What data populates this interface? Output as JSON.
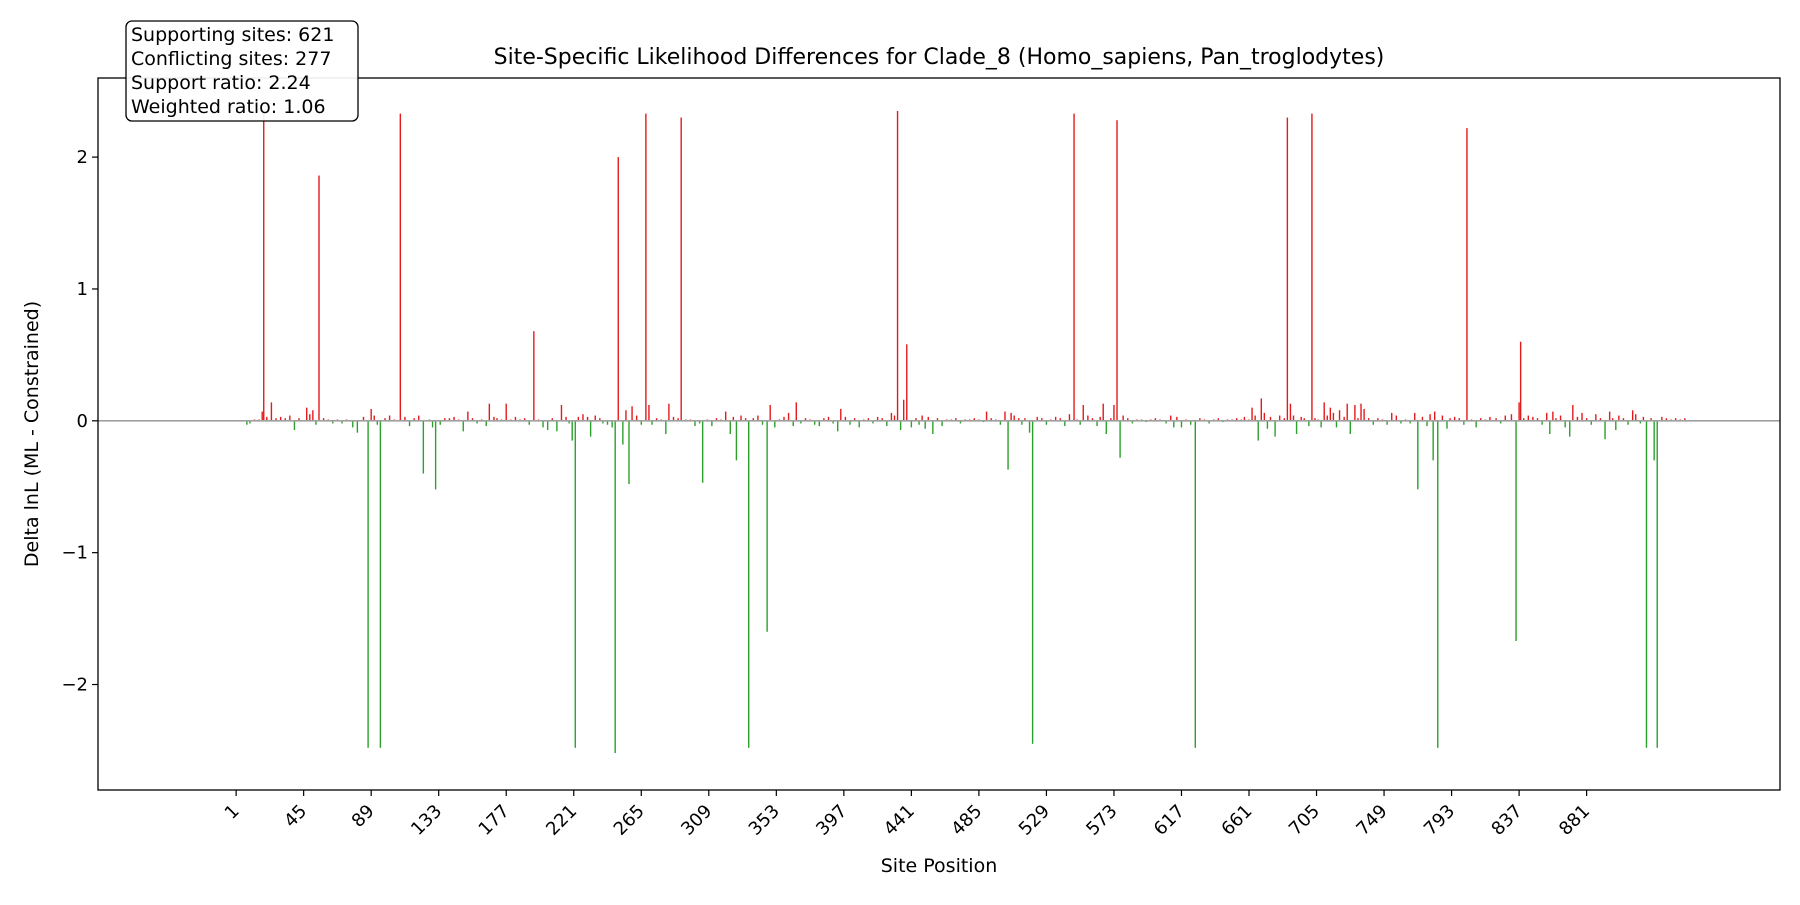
{
  "chart_data": {
    "type": "bar",
    "title": "Site-Specific Likelihood Differences for Clade_8 (Homo_sapiens, Pan_troglodytes)",
    "xlabel": "Site Position",
    "ylabel": "Delta lnL (ML - Constrained)",
    "xlim": [
      -89,
      1007
    ],
    "ylim": [
      -2.8,
      2.6
    ],
    "yticks": [
      -2,
      -1,
      0,
      1,
      2
    ],
    "xticks": [
      1,
      45,
      89,
      133,
      177,
      221,
      265,
      309,
      353,
      397,
      441,
      485,
      529,
      573,
      617,
      661,
      705,
      749,
      793,
      837,
      881
    ],
    "grid": false,
    "zero_line": true,
    "colors": {
      "supporting": "#e41a1c",
      "conflicting": "#2ca02c",
      "zero_line": "#a0a0a0"
    },
    "stats": {
      "supporting": "Supporting sites: 621",
      "conflicting": "Conflicting sites: 277",
      "support_ratio": "Support ratio: 2.24",
      "weighted_ratio": "Weighted ratio: 1.06"
    },
    "values": [
      [
        8,
        -0.03
      ],
      [
        10,
        -0.02
      ],
      [
        13,
        0.01
      ],
      [
        16,
        0.01
      ],
      [
        18,
        0.07
      ],
      [
        19,
        2.35
      ],
      [
        21,
        0.03
      ],
      [
        24,
        0.14
      ],
      [
        27,
        0.02
      ],
      [
        30,
        0.03
      ],
      [
        33,
        0.02
      ],
      [
        36,
        0.04
      ],
      [
        39,
        -0.07
      ],
      [
        42,
        0.02
      ],
      [
        47,
        0.1
      ],
      [
        49,
        0.05
      ],
      [
        51,
        0.08
      ],
      [
        53,
        -0.03
      ],
      [
        55,
        1.86
      ],
      [
        58,
        0.02
      ],
      [
        61,
        0.01
      ],
      [
        64,
        -0.02
      ],
      [
        67,
        0.01
      ],
      [
        70,
        -0.02
      ],
      [
        73,
        0.01
      ],
      [
        77,
        -0.05
      ],
      [
        80,
        -0.09
      ],
      [
        84,
        0.03
      ],
      [
        87,
        -2.48
      ],
      [
        89,
        0.09
      ],
      [
        91,
        0.04
      ],
      [
        93,
        -0.03
      ],
      [
        95,
        -2.48
      ],
      [
        98,
        0.02
      ],
      [
        101,
        0.04
      ],
      [
        104,
        0.01
      ],
      [
        108,
        2.33
      ],
      [
        111,
        0.03
      ],
      [
        114,
        -0.04
      ],
      [
        117,
        0.02
      ],
      [
        120,
        0.04
      ],
      [
        123,
        -0.4
      ],
      [
        127,
        0.01
      ],
      [
        129,
        -0.05
      ],
      [
        131,
        -0.52
      ],
      [
        134,
        -0.03
      ],
      [
        137,
        0.02
      ],
      [
        140,
        0.02
      ],
      [
        143,
        0.03
      ],
      [
        146,
        0.01
      ],
      [
        149,
        -0.08
      ],
      [
        152,
        0.07
      ],
      [
        155,
        0.02
      ],
      [
        158,
        -0.02
      ],
      [
        161,
        0.01
      ],
      [
        164,
        -0.04
      ],
      [
        166,
        0.13
      ],
      [
        169,
        0.03
      ],
      [
        171,
        0.02
      ],
      [
        174,
        0.01
      ],
      [
        177,
        0.13
      ],
      [
        180,
        0.01
      ],
      [
        183,
        0.03
      ],
      [
        186,
        0.01
      ],
      [
        189,
        0.02
      ],
      [
        192,
        -0.03
      ],
      [
        195,
        0.68
      ],
      [
        198,
        0.01
      ],
      [
        201,
        -0.05
      ],
      [
        204,
        -0.07
      ],
      [
        207,
        0.02
      ],
      [
        210,
        -0.08
      ],
      [
        213,
        0.12
      ],
      [
        216,
        0.03
      ],
      [
        218,
        -0.02
      ],
      [
        220,
        -0.15
      ],
      [
        222,
        -2.48
      ],
      [
        224,
        0.03
      ],
      [
        227,
        0.05
      ],
      [
        230,
        0.03
      ],
      [
        232,
        -0.12
      ],
      [
        235,
        0.04
      ],
      [
        238,
        0.02
      ],
      [
        240,
        -0.02
      ],
      [
        243,
        -0.03
      ],
      [
        246,
        -0.05
      ],
      [
        248,
        -2.52
      ],
      [
        250,
        2.0
      ],
      [
        253,
        -0.18
      ],
      [
        255,
        0.08
      ],
      [
        257,
        -0.48
      ],
      [
        259,
        0.11
      ],
      [
        262,
        0.04
      ],
      [
        265,
        -0.03
      ],
      [
        268,
        2.33
      ],
      [
        270,
        0.12
      ],
      [
        272,
        -0.03
      ],
      [
        275,
        0.02
      ],
      [
        278,
        0.01
      ],
      [
        281,
        -0.1
      ],
      [
        283,
        0.13
      ],
      [
        286,
        0.03
      ],
      [
        289,
        0.02
      ],
      [
        291,
        2.3
      ],
      [
        294,
        0.01
      ],
      [
        297,
        0.01
      ],
      [
        300,
        -0.04
      ],
      [
        303,
        -0.02
      ],
      [
        305,
        -0.47
      ],
      [
        308,
        0.01
      ],
      [
        311,
        -0.04
      ],
      [
        314,
        0.02
      ],
      [
        317,
        0.01
      ],
      [
        320,
        0.07
      ],
      [
        323,
        -0.1
      ],
      [
        325,
        0.03
      ],
      [
        327,
        -0.3
      ],
      [
        330,
        0.04
      ],
      [
        333,
        0.02
      ],
      [
        335,
        -2.48
      ],
      [
        338,
        0.02
      ],
      [
        341,
        0.04
      ],
      [
        344,
        -0.03
      ],
      [
        347,
        -1.6
      ],
      [
        349,
        0.12
      ],
      [
        352,
        -0.05
      ],
      [
        355,
        0.01
      ],
      [
        358,
        0.03
      ],
      [
        361,
        0.06
      ],
      [
        364,
        -0.04
      ],
      [
        366,
        0.14
      ],
      [
        369,
        -0.02
      ],
      [
        372,
        0.02
      ],
      [
        375,
        0.01
      ],
      [
        378,
        -0.03
      ],
      [
        381,
        -0.04
      ],
      [
        384,
        0.02
      ],
      [
        387,
        0.03
      ],
      [
        390,
        -0.02
      ],
      [
        393,
        -0.08
      ],
      [
        395,
        0.09
      ],
      [
        398,
        0.03
      ],
      [
        401,
        -0.03
      ],
      [
        404,
        0.02
      ],
      [
        407,
        -0.05
      ],
      [
        410,
        0.01
      ],
      [
        413,
        0.02
      ],
      [
        416,
        -0.02
      ],
      [
        419,
        0.03
      ],
      [
        422,
        0.02
      ],
      [
        425,
        -0.04
      ],
      [
        428,
        0.06
      ],
      [
        430,
        0.04
      ],
      [
        432,
        2.35
      ],
      [
        434,
        -0.07
      ],
      [
        436,
        0.16
      ],
      [
        438,
        0.58
      ],
      [
        441,
        -0.05
      ],
      [
        444,
        0.02
      ],
      [
        446,
        -0.03
      ],
      [
        448,
        0.04
      ],
      [
        450,
        -0.06
      ],
      [
        452,
        0.03
      ],
      [
        455,
        -0.1
      ],
      [
        458,
        0.02
      ],
      [
        461,
        -0.04
      ],
      [
        464,
        0.01
      ],
      [
        467,
        0.01
      ],
      [
        470,
        0.02
      ],
      [
        473,
        -0.02
      ],
      [
        476,
        0.01
      ],
      [
        479,
        0.01
      ],
      [
        482,
        0.02
      ],
      [
        485,
        0.01
      ],
      [
        488,
        -0.01
      ],
      [
        490,
        0.07
      ],
      [
        493,
        0.02
      ],
      [
        496,
        0.01
      ],
      [
        499,
        -0.03
      ],
      [
        502,
        0.07
      ],
      [
        504,
        -0.37
      ],
      [
        506,
        0.06
      ],
      [
        508,
        0.04
      ],
      [
        511,
        0.02
      ],
      [
        513,
        -0.03
      ],
      [
        515,
        0.02
      ],
      [
        518,
        -0.09
      ],
      [
        520,
        -2.45
      ],
      [
        523,
        0.03
      ],
      [
        526,
        0.02
      ],
      [
        529,
        -0.03
      ],
      [
        532,
        0.01
      ],
      [
        535,
        0.03
      ],
      [
        538,
        0.02
      ],
      [
        541,
        -0.04
      ],
      [
        544,
        0.05
      ],
      [
        547,
        2.33
      ],
      [
        549,
        0.01
      ],
      [
        551,
        -0.03
      ],
      [
        553,
        0.12
      ],
      [
        556,
        0.04
      ],
      [
        559,
        0.02
      ],
      [
        562,
        -0.04
      ],
      [
        564,
        0.03
      ],
      [
        566,
        0.13
      ],
      [
        568,
        -0.1
      ],
      [
        571,
        0.02
      ],
      [
        573,
        0.12
      ],
      [
        575,
        2.28
      ],
      [
        577,
        -0.28
      ],
      [
        579,
        0.04
      ],
      [
        582,
        0.02
      ],
      [
        585,
        -0.02
      ],
      [
        588,
        0.01
      ],
      [
        591,
        0.01
      ],
      [
        594,
        -0.01
      ],
      [
        597,
        0.01
      ],
      [
        600,
        0.02
      ],
      [
        603,
        0.01
      ],
      [
        607,
        -0.02
      ],
      [
        610,
        0.04
      ],
      [
        612,
        -0.05
      ],
      [
        614,
        0.03
      ],
      [
        617,
        -0.05
      ],
      [
        620,
        0.01
      ],
      [
        623,
        -0.03
      ],
      [
        626,
        -2.48
      ],
      [
        629,
        0.02
      ],
      [
        632,
        0.01
      ],
      [
        635,
        -0.02
      ],
      [
        638,
        0.01
      ],
      [
        641,
        0.02
      ],
      [
        644,
        -0.01
      ],
      [
        647,
        0.01
      ],
      [
        650,
        0.01
      ],
      [
        653,
        0.02
      ],
      [
        656,
        0.01
      ],
      [
        658,
        0.03
      ],
      [
        661,
        0.01
      ],
      [
        663,
        0.1
      ],
      [
        665,
        0.04
      ],
      [
        667,
        -0.15
      ],
      [
        669,
        0.17
      ],
      [
        671,
        0.06
      ],
      [
        673,
        -0.06
      ],
      [
        675,
        0.03
      ],
      [
        678,
        -0.12
      ],
      [
        681,
        0.04
      ],
      [
        684,
        0.02
      ],
      [
        686,
        2.3
      ],
      [
        688,
        0.13
      ],
      [
        690,
        0.04
      ],
      [
        692,
        -0.1
      ],
      [
        695,
        0.03
      ],
      [
        697,
        0.02
      ],
      [
        700,
        -0.04
      ],
      [
        702,
        2.33
      ],
      [
        704,
        0.02
      ],
      [
        706,
        0.01
      ],
      [
        708,
        -0.05
      ],
      [
        710,
        0.14
      ],
      [
        712,
        0.04
      ],
      [
        714,
        0.1
      ],
      [
        716,
        0.06
      ],
      [
        718,
        -0.05
      ],
      [
        720,
        0.08
      ],
      [
        723,
        0.03
      ],
      [
        725,
        0.13
      ],
      [
        727,
        -0.1
      ],
      [
        730,
        0.12
      ],
      [
        732,
        0.02
      ],
      [
        734,
        0.13
      ],
      [
        736,
        0.09
      ],
      [
        739,
        0.02
      ],
      [
        742,
        -0.03
      ],
      [
        745,
        0.02
      ],
      [
        748,
        0.01
      ],
      [
        751,
        -0.03
      ],
      [
        754,
        0.06
      ],
      [
        757,
        0.04
      ],
      [
        760,
        -0.02
      ],
      [
        763,
        0.01
      ],
      [
        766,
        -0.02
      ],
      [
        769,
        0.06
      ],
      [
        771,
        -0.52
      ],
      [
        774,
        0.03
      ],
      [
        777,
        -0.04
      ],
      [
        779,
        0.05
      ],
      [
        781,
        -0.3
      ],
      [
        782,
        0.07
      ],
      [
        784,
        -2.48
      ],
      [
        787,
        0.04
      ],
      [
        790,
        -0.06
      ],
      [
        792,
        0.02
      ],
      [
        795,
        0.03
      ],
      [
        798,
        0.02
      ],
      [
        801,
        -0.03
      ],
      [
        803,
        2.22
      ],
      [
        806,
        0.01
      ],
      [
        809,
        -0.05
      ],
      [
        812,
        0.02
      ],
      [
        815,
        0.01
      ],
      [
        818,
        0.03
      ],
      [
        822,
        0.02
      ],
      [
        825,
        -0.02
      ],
      [
        828,
        0.04
      ],
      [
        832,
        0.05
      ],
      [
        835,
        -1.67
      ],
      [
        837,
        0.14
      ],
      [
        838,
        0.6
      ],
      [
        840,
        0.02
      ],
      [
        843,
        0.04
      ],
      [
        846,
        0.03
      ],
      [
        849,
        0.02
      ],
      [
        852,
        -0.03
      ],
      [
        855,
        0.06
      ],
      [
        857,
        -0.1
      ],
      [
        859,
        0.07
      ],
      [
        861,
        0.02
      ],
      [
        864,
        0.04
      ],
      [
        867,
        -0.05
      ],
      [
        870,
        -0.12
      ],
      [
        872,
        0.12
      ],
      [
        875,
        0.03
      ],
      [
        878,
        0.06
      ],
      [
        881,
        0.02
      ],
      [
        884,
        -0.03
      ],
      [
        887,
        0.05
      ],
      [
        890,
        0.02
      ],
      [
        893,
        -0.14
      ],
      [
        896,
        0.07
      ],
      [
        898,
        0.02
      ],
      [
        900,
        -0.07
      ],
      [
        902,
        0.04
      ],
      [
        905,
        0.02
      ],
      [
        908,
        -0.03
      ],
      [
        911,
        0.08
      ],
      [
        913,
        0.05
      ],
      [
        916,
        -0.02
      ],
      [
        918,
        0.03
      ],
      [
        920,
        -2.48
      ],
      [
        923,
        0.02
      ],
      [
        925,
        -0.3
      ],
      [
        927,
        -2.48
      ],
      [
        930,
        0.03
      ],
      [
        933,
        0.02
      ],
      [
        936,
        0.01
      ],
      [
        939,
        0.02
      ],
      [
        942,
        0.01
      ],
      [
        945,
        0.02
      ]
    ]
  }
}
